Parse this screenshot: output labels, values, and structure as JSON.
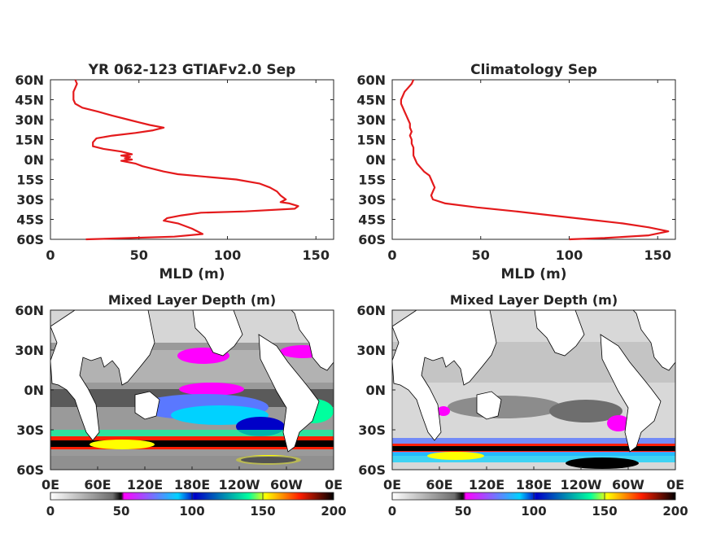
{
  "chart_data": [
    {
      "type": "line",
      "title": "YR 062-123 GTIAFv2.0 Sep",
      "xlabel": "MLD (m)",
      "ylabel": "",
      "xlim": [
        0,
        160
      ],
      "ylim": [
        -60,
        60
      ],
      "x_ticks": [
        "0",
        "50",
        "100",
        "150"
      ],
      "y_ticks": [
        "60N",
        "45N",
        "30N",
        "15N",
        "0N",
        "15S",
        "30S",
        "45S",
        "60S"
      ],
      "line_color": "#e41a1c",
      "series": [
        {
          "points": [
            [
              14,
              60
            ],
            [
              15,
              57
            ],
            [
              14,
              54
            ],
            [
              13,
              51
            ],
            [
              13,
              48
            ],
            [
              13,
              45
            ],
            [
              14,
              42
            ],
            [
              18,
              39
            ],
            [
              27,
              36
            ],
            [
              35,
              33
            ],
            [
              44,
              30
            ],
            [
              50,
              28
            ],
            [
              56,
              26
            ],
            [
              64,
              24
            ],
            [
              58,
              22
            ],
            [
              48,
              20
            ],
            [
              35,
              18
            ],
            [
              26,
              16
            ],
            [
              24,
              13
            ],
            [
              24,
              10
            ],
            [
              30,
              8
            ],
            [
              40,
              6
            ],
            [
              46,
              4
            ],
            [
              40,
              3
            ],
            [
              45,
              2
            ],
            [
              42,
              1
            ],
            [
              46,
              0
            ],
            [
              40,
              -1
            ],
            [
              48,
              -3
            ],
            [
              52,
              -5
            ],
            [
              58,
              -7
            ],
            [
              64,
              -9
            ],
            [
              72,
              -11
            ],
            [
              88,
              -13
            ],
            [
              105,
              -15
            ],
            [
              118,
              -18
            ],
            [
              124,
              -21
            ],
            [
              128,
              -24
            ],
            [
              130,
              -27
            ],
            [
              133,
              -30
            ],
            [
              130,
              -32
            ],
            [
              135,
              -33
            ],
            [
              140,
              -35
            ],
            [
              138,
              -37
            ],
            [
              110,
              -39
            ],
            [
              85,
              -40
            ],
            [
              74,
              -42
            ],
            [
              66,
              -44
            ],
            [
              64,
              -46
            ],
            [
              72,
              -48
            ],
            [
              80,
              -52
            ],
            [
              86,
              -56
            ],
            [
              70,
              -58
            ],
            [
              45,
              -59
            ],
            [
              20,
              -60
            ]
          ]
        }
      ]
    },
    {
      "type": "line",
      "title": "Climatology Sep",
      "xlabel": "MLD (m)",
      "ylabel": "",
      "xlim": [
        0,
        160
      ],
      "ylim": [
        -60,
        60
      ],
      "x_ticks": [
        "0",
        "50",
        "100",
        "150"
      ],
      "y_ticks": [
        "60N",
        "45N",
        "30N",
        "15N",
        "0N",
        "15S",
        "30S",
        "45S",
        "60S"
      ],
      "line_color": "#e41a1c",
      "series": [
        {
          "points": [
            [
              12,
              60
            ],
            [
              11,
              57
            ],
            [
              9,
              54
            ],
            [
              7,
              51
            ],
            [
              6,
              48
            ],
            [
              5,
              45
            ],
            [
              5,
              42
            ],
            [
              6,
              39
            ],
            [
              7,
              36
            ],
            [
              8,
              33
            ],
            [
              9,
              30
            ],
            [
              10,
              27
            ],
            [
              10,
              24
            ],
            [
              11,
              21
            ],
            [
              10,
              18
            ],
            [
              11,
              15
            ],
            [
              11,
              12
            ],
            [
              12,
              9
            ],
            [
              12,
              6
            ],
            [
              12,
              3
            ],
            [
              13,
              0
            ],
            [
              14,
              -3
            ],
            [
              16,
              -6
            ],
            [
              18,
              -9
            ],
            [
              21,
              -12
            ],
            [
              22,
              -15
            ],
            [
              23,
              -18
            ],
            [
              24,
              -21
            ],
            [
              23,
              -24
            ],
            [
              22,
              -27
            ],
            [
              23,
              -30
            ],
            [
              30,
              -33
            ],
            [
              48,
              -36
            ],
            [
              70,
              -39
            ],
            [
              90,
              -42
            ],
            [
              110,
              -45
            ],
            [
              130,
              -48
            ],
            [
              145,
              -51
            ],
            [
              156,
              -54
            ],
            [
              145,
              -57
            ],
            [
              120,
              -59
            ],
            [
              100,
              -60
            ]
          ]
        }
      ]
    },
    {
      "type": "heatmap",
      "title": "Mixed Layer Depth (m)",
      "x_ticks": [
        "0E",
        "60E",
        "120E",
        "180E",
        "120W",
        "60W",
        "0E"
      ],
      "y_ticks": [
        "60N",
        "30N",
        "0N",
        "30S",
        "60S"
      ],
      "colorbar_ticks": [
        "0",
        "50",
        "100",
        "150",
        "200"
      ],
      "colorbar_range": [
        0,
        200
      ]
    },
    {
      "type": "heatmap",
      "title": "Mixed Layer Depth (m)",
      "x_ticks": [
        "0E",
        "60E",
        "120E",
        "180E",
        "120W",
        "60W",
        "0E"
      ],
      "y_ticks": [
        "60N",
        "30N",
        "0N",
        "30S",
        "60S"
      ],
      "colorbar_ticks": [
        "0",
        "50",
        "100",
        "150",
        "200"
      ],
      "colorbar_range": [
        0,
        200
      ]
    }
  ]
}
